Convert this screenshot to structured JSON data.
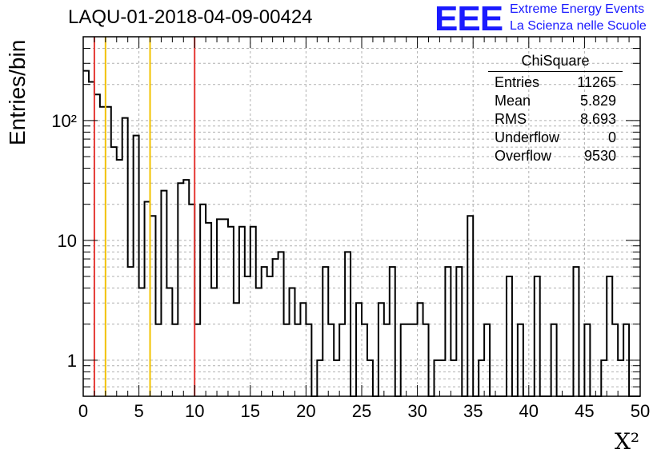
{
  "chart_data": {
    "type": "histogram",
    "title": "LAQU-01-2018-04-09-00424",
    "xlabel": "X²",
    "ylabel": "Entries/bin",
    "xlim": [
      0,
      50
    ],
    "ylim": [
      0.5,
      500
    ],
    "yscale": "log",
    "grid": true,
    "bin_width": 0.5,
    "x_ticks": [
      "0",
      "5",
      "10",
      "15",
      "20",
      "25",
      "30",
      "35",
      "40",
      "45",
      "50"
    ],
    "y_ticks": [
      "1",
      "10",
      "10²"
    ],
    "values": [
      260,
      210,
      165,
      130,
      130,
      60,
      47,
      105,
      6,
      75,
      4,
      21,
      16,
      2,
      26,
      4,
      2,
      30,
      32,
      20,
      2,
      20,
      14,
      4,
      15,
      15,
      13,
      3,
      13,
      5,
      13,
      4,
      6,
      5,
      7,
      8,
      2,
      4,
      2,
      3,
      2,
      0,
      1,
      6,
      2,
      1,
      2,
      8,
      0,
      3,
      2,
      1,
      0,
      3,
      2,
      6,
      0,
      2,
      2,
      2,
      3,
      2,
      0,
      1,
      1,
      6,
      1,
      6,
      0,
      16,
      0,
      1,
      2,
      0,
      0,
      0,
      5,
      0,
      2,
      0,
      0,
      5,
      0,
      0,
      2,
      0,
      0,
      0,
      6,
      0,
      2,
      0,
      0,
      1,
      5,
      2,
      1,
      2,
      0,
      0
    ],
    "reference_lines": [
      {
        "x": 1,
        "color": "#e53935"
      },
      {
        "x": 2,
        "color": "#f2c200"
      },
      {
        "x": 6,
        "color": "#f2c200"
      },
      {
        "x": 10,
        "color": "#e53935"
      }
    ],
    "stats": {
      "name": "ChiSquare",
      "rows": [
        {
          "label": "Entries",
          "value": "11265"
        },
        {
          "label": "Mean",
          "value": "5.829"
        },
        {
          "label": "RMS",
          "value": "8.693"
        },
        {
          "label": "Underflow",
          "value": "0"
        },
        {
          "label": "Overflow",
          "value": "9530"
        }
      ]
    }
  },
  "logo": {
    "text": "EEE",
    "line1": "Extreme Energy Events",
    "line2": "La Scienza nelle Scuole",
    "color": "#1a1aff"
  }
}
